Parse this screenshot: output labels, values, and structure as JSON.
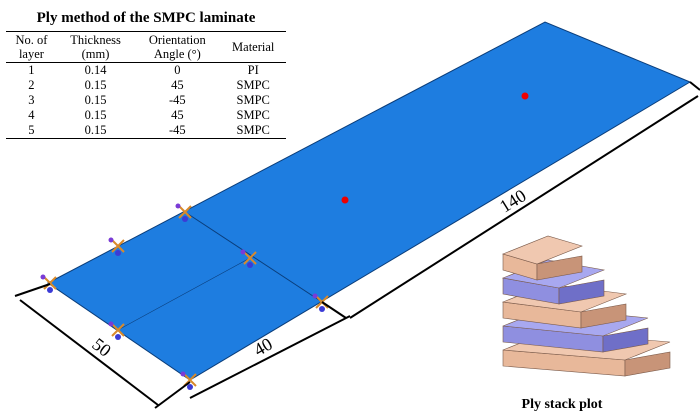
{
  "title": "Ply method of the SMPC laminate",
  "table": {
    "header": [
      [
        "No. of",
        "layer"
      ],
      [
        "Thickness",
        "(mm)"
      ],
      [
        "Orientation",
        "Angle (°)"
      ],
      [
        "Material"
      ]
    ],
    "rows": [
      [
        "1",
        "0.14",
        "0",
        "PI"
      ],
      [
        "2",
        "0.15",
        "45",
        "SMPC"
      ],
      [
        "3",
        "0.15",
        "-45",
        "SMPC"
      ],
      [
        "4",
        "0.15",
        "45",
        "SMPC"
      ],
      [
        "5",
        "0.15",
        "-45",
        "SMPC"
      ]
    ]
  },
  "dimensions": {
    "width": "50",
    "segment": "40",
    "length": "140"
  },
  "caption": "Ply stack plot"
}
